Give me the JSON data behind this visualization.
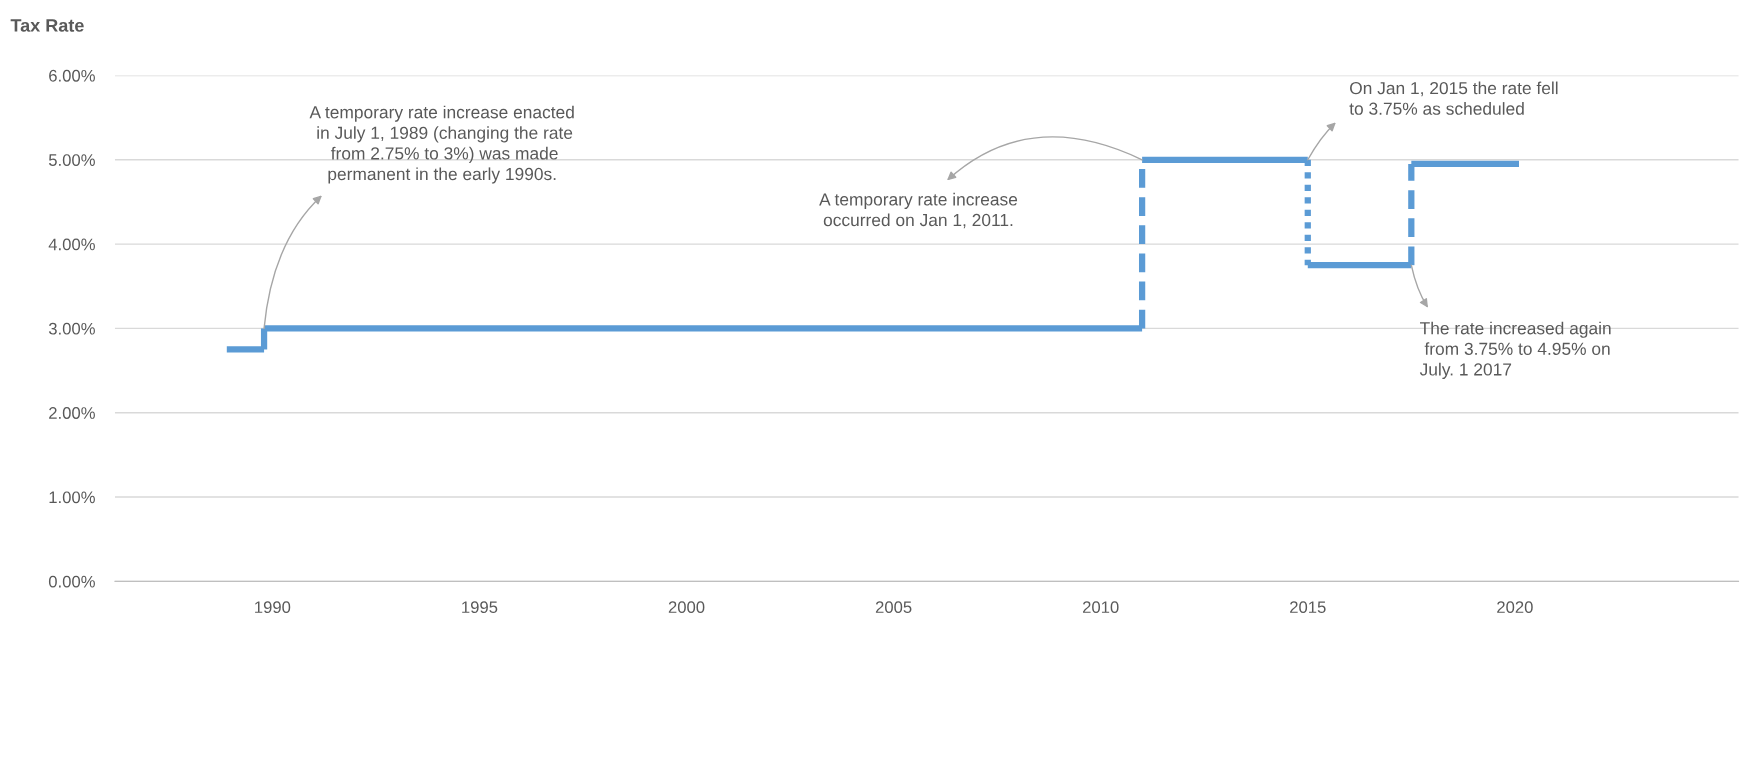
{
  "chart_data": {
    "type": "line",
    "ylabel": "Tax Rate",
    "xlim": [
      1986.2,
      2025.4
    ],
    "xticks": [
      1990,
      1995,
      2000,
      2005,
      2010,
      2015,
      2020
    ],
    "ylim": [
      0,
      6
    ],
    "yticks": [
      {
        "value": 0,
        "label": "0.00%"
      },
      {
        "value": 1,
        "label": "1.00%"
      },
      {
        "value": 2,
        "label": "2.00%"
      },
      {
        "value": 3,
        "label": "3.00%"
      },
      {
        "value": 4,
        "label": "4.00%"
      },
      {
        "value": 5,
        "label": "5.00%"
      },
      {
        "value": 6,
        "label": "6.00%"
      }
    ],
    "grid": "y",
    "series": [
      {
        "color": "#5b9bd5",
        "x": [
          1988.9,
          1989.8
        ],
        "values": [
          2.75,
          2.75
        ],
        "line_style": "solid"
      },
      {
        "color": "#5b9bd5",
        "x": [
          1989.8,
          1989.8
        ],
        "values": [
          2.75,
          3.0
        ],
        "line_style": "solid"
      },
      {
        "color": "#5b9bd5",
        "x": [
          1989.8,
          2011.0
        ],
        "values": [
          3.0,
          3.0
        ],
        "line_style": "solid"
      },
      {
        "color": "#5b9bd5",
        "x": [
          2011.0,
          2011.0
        ],
        "values": [
          3.0,
          5.0
        ],
        "line_style": "dashed"
      },
      {
        "color": "#5b9bd5",
        "x": [
          2011.0,
          2015.0
        ],
        "values": [
          5.0,
          5.0
        ],
        "line_style": "solid"
      },
      {
        "color": "#5b9bd5",
        "x": [
          2015.0,
          2015.0
        ],
        "values": [
          5.0,
          3.75
        ],
        "line_style": "dotted"
      },
      {
        "color": "#5b9bd5",
        "x": [
          2015.0,
          2017.5
        ],
        "values": [
          3.75,
          3.75
        ],
        "line_style": "solid"
      },
      {
        "color": "#5b9bd5",
        "x": [
          2017.5,
          2017.5
        ],
        "values": [
          3.75,
          4.95
        ],
        "line_style": "dashed"
      },
      {
        "color": "#5b9bd5",
        "x": [
          2017.5,
          2020.1
        ],
        "values": [
          4.95,
          4.95
        ],
        "line_style": "solid"
      }
    ],
    "annotations": [
      {
        "text": "A temporary rate increase enacted\n in July 1, 1989 (changing the rate\n from 2.75% to 3%) was made\npermanent in the early 1990s.",
        "x": 1989.8,
        "y": 3.0
      },
      {
        "text": "A temporary rate increase\noccurred on Jan 1, 2011.",
        "x": 2011.0,
        "y": 5.0
      },
      {
        "text": "On Jan 1, 2015 the rate fell\nto 3.75% as scheduled",
        "x": 2015.0,
        "y": 5.0
      },
      {
        "text": "The rate increased again\n from 3.75% to 4.95% on\nJuly. 1 2017",
        "x": 2017.5,
        "y": 3.75
      }
    ]
  }
}
